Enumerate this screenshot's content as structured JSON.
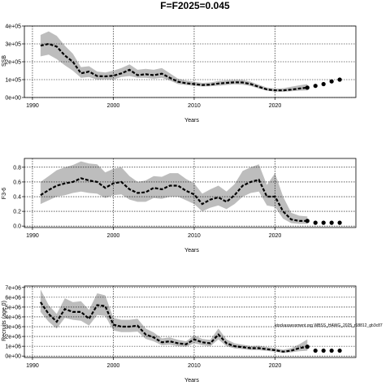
{
  "chart_data": {
    "title": "F=F2025=0.045",
    "note": "stockassessment.org WBSS_HAWG_2025_r18812_gb3c87",
    "panels": [
      {
        "type": "line",
        "name": "ssb",
        "ylabel": "SSB",
        "xlabel": "Years",
        "xlim": [
          1989,
          2030
        ],
        "ylim": [
          0,
          400000
        ],
        "xticks": [
          1990,
          2000,
          2010,
          2020
        ],
        "yticks": [
          0,
          100000,
          200000,
          300000,
          400000
        ],
        "ytick_labels": [
          "0e+00",
          "1e+05",
          "2e+05",
          "3e+05",
          "4e+05"
        ],
        "grid": true,
        "x": [
          1991,
          1992,
          1993,
          1994,
          1995,
          1996,
          1997,
          1998,
          1999,
          2000,
          2001,
          2002,
          2003,
          2004,
          2005,
          2006,
          2007,
          2008,
          2009,
          2010,
          2011,
          2012,
          2013,
          2014,
          2015,
          2016,
          2017,
          2018,
          2019,
          2020,
          2021,
          2022,
          2023,
          2024
        ],
        "estimate": [
          290000,
          300000,
          285000,
          235000,
          200000,
          135000,
          145000,
          120000,
          118000,
          122000,
          135000,
          155000,
          125000,
          130000,
          125000,
          133000,
          110000,
          88000,
          80000,
          75000,
          70000,
          72000,
          78000,
          82000,
          85000,
          84000,
          75000,
          60000,
          45000,
          40000,
          40000,
          44000,
          50000,
          55000
        ],
        "lower": [
          230000,
          240000,
          215000,
          180000,
          150000,
          110000,
          115000,
          100000,
          102000,
          100000,
          115000,
          120000,
          110000,
          110000,
          105000,
          110000,
          95000,
          75000,
          70000,
          65000,
          62000,
          63000,
          66000,
          70000,
          74000,
          72000,
          64000,
          50000,
          38000,
          33000,
          32000,
          35000,
          38000,
          40000
        ],
        "upper": [
          350000,
          370000,
          345000,
          290000,
          245000,
          170000,
          175000,
          145000,
          140000,
          150000,
          165000,
          185000,
          155000,
          160000,
          155000,
          165000,
          135000,
          105000,
          95000,
          88000,
          82000,
          84000,
          92000,
          96000,
          98000,
          98000,
          88000,
          72000,
          56000,
          50000,
          52000,
          60000,
          68000,
          75000
        ],
        "forecast_x": [
          2024,
          2025,
          2026,
          2027,
          2028
        ],
        "forecast": [
          55000,
          65000,
          75000,
          90000,
          100000
        ]
      },
      {
        "type": "line",
        "name": "fbar",
        "ylabel": "F3-6",
        "xlabel": "Years",
        "xlim": [
          1989,
          2030
        ],
        "ylim": [
          -0.02,
          0.92
        ],
        "xticks": [
          1990,
          2000,
          2010,
          2020
        ],
        "yticks": [
          0,
          0.2,
          0.4,
          0.6,
          0.8
        ],
        "ytick_labels": [
          "0.0",
          "0.2",
          "0.4",
          "0.6",
          "0.8"
        ],
        "grid": true,
        "x": [
          1991,
          1992,
          1993,
          1994,
          1995,
          1996,
          1997,
          1998,
          1999,
          2000,
          2001,
          2002,
          2003,
          2004,
          2005,
          2006,
          2007,
          2008,
          2009,
          2010,
          2011,
          2012,
          2013,
          2014,
          2015,
          2016,
          2017,
          2018,
          2019,
          2020,
          2021,
          2022,
          2023,
          2024
        ],
        "estimate": [
          0.42,
          0.49,
          0.55,
          0.58,
          0.6,
          0.65,
          0.62,
          0.6,
          0.52,
          0.58,
          0.6,
          0.5,
          0.45,
          0.46,
          0.52,
          0.5,
          0.55,
          0.55,
          0.48,
          0.43,
          0.3,
          0.36,
          0.39,
          0.33,
          0.42,
          0.55,
          0.6,
          0.63,
          0.4,
          0.4,
          0.2,
          0.09,
          0.07,
          0.07
        ],
        "lower": [
          0.3,
          0.35,
          0.4,
          0.42,
          0.45,
          0.47,
          0.45,
          0.44,
          0.38,
          0.42,
          0.43,
          0.36,
          0.33,
          0.33,
          0.38,
          0.37,
          0.4,
          0.4,
          0.35,
          0.3,
          0.2,
          0.25,
          0.28,
          0.23,
          0.3,
          0.4,
          0.45,
          0.47,
          0.28,
          0.26,
          0.1,
          0.04,
          0.03,
          0.03
        ],
        "upper": [
          0.6,
          0.68,
          0.76,
          0.8,
          0.83,
          0.88,
          0.85,
          0.84,
          0.73,
          0.78,
          0.8,
          0.68,
          0.6,
          0.62,
          0.68,
          0.67,
          0.72,
          0.72,
          0.64,
          0.58,
          0.44,
          0.5,
          0.55,
          0.47,
          0.57,
          0.75,
          0.8,
          0.84,
          0.56,
          0.72,
          0.4,
          0.18,
          0.14,
          0.13
        ],
        "forecast_x": [
          2024,
          2025,
          2026,
          2027,
          2028
        ],
        "forecast": [
          0.07,
          0.045,
          0.045,
          0.045,
          0.045
        ]
      },
      {
        "type": "line",
        "name": "recruits",
        "ylabel": "Recruits (age 0)",
        "xlabel": "Years",
        "xlim": [
          1989,
          2030
        ],
        "ylim": [
          -150000,
          7150000
        ],
        "xticks": [
          1990,
          2000,
          2010,
          2020
        ],
        "yticks": [
          0,
          1000000,
          2000000,
          3000000,
          4000000,
          5000000,
          6000000,
          7000000
        ],
        "ytick_labels": [
          "0e+00",
          "1e+06",
          "2e+06",
          "3e+06",
          "4e+06",
          "5e+06",
          "6e+06",
          "7e+06"
        ],
        "grid": true,
        "x": [
          1991,
          1992,
          1993,
          1994,
          1995,
          1996,
          1997,
          1998,
          1999,
          2000,
          2001,
          2002,
          2003,
          2004,
          2005,
          2006,
          2007,
          2008,
          2009,
          2010,
          2011,
          2012,
          2013,
          2014,
          2015,
          2016,
          2017,
          2018,
          2019,
          2020,
          2021,
          2022,
          2023,
          2024
        ],
        "estimate": [
          5500000,
          4300000,
          3500000,
          4800000,
          4500000,
          4500000,
          3800000,
          5200000,
          5100000,
          3200000,
          3000000,
          3000000,
          3100000,
          2200000,
          1900000,
          1400000,
          1500000,
          1300000,
          1200000,
          1700000,
          1400000,
          1300000,
          2200000,
          1300000,
          1000000,
          900000,
          800000,
          800000,
          700000,
          600000,
          450000,
          550000,
          800000,
          950000
        ],
        "lower": [
          4500000,
          3500000,
          2800000,
          3900000,
          3700000,
          3600000,
          3100000,
          4200000,
          4100000,
          2600000,
          2450000,
          2450000,
          2500000,
          1750000,
          1500000,
          1100000,
          1150000,
          1000000,
          950000,
          1300000,
          1100000,
          1000000,
          1700000,
          1000000,
          780000,
          700000,
          620000,
          600000,
          520000,
          440000,
          310000,
          380000,
          500000,
          550000
        ],
        "upper": [
          6800000,
          5200000,
          4300000,
          5900000,
          5500000,
          5600000,
          4700000,
          6400000,
          6200000,
          3900000,
          3700000,
          3700000,
          3800000,
          2800000,
          2400000,
          1800000,
          1900000,
          1650000,
          1500000,
          2100000,
          1750000,
          1650000,
          2800000,
          1700000,
          1300000,
          1150000,
          1020000,
          1050000,
          920000,
          800000,
          650000,
          800000,
          1200000,
          1700000
        ],
        "forecast_x": [
          2024,
          2025,
          2026,
          2027,
          2028
        ],
        "forecast": [
          950000,
          550000,
          550000,
          550000,
          550000
        ]
      }
    ]
  }
}
